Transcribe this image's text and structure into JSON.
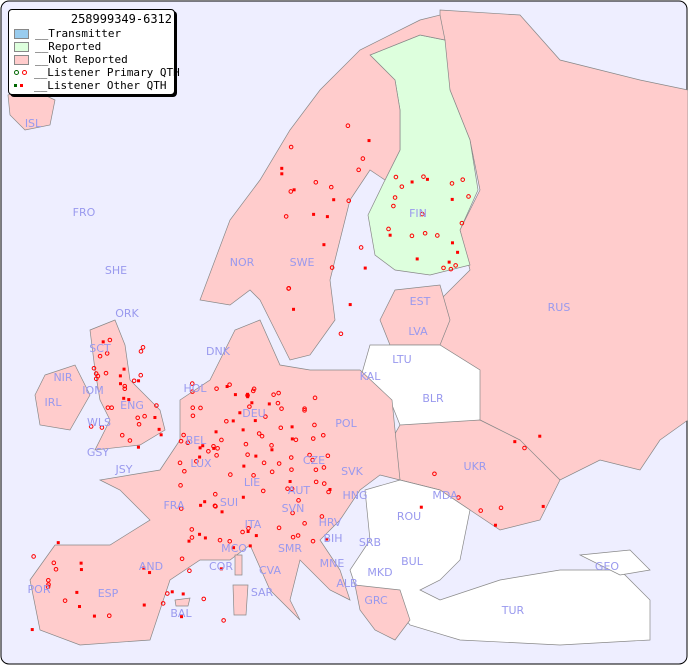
{
  "legend": {
    "title": "258999349-6312",
    "items": [
      {
        "label": "__Transmitter",
        "color": "#99ccee"
      },
      {
        "label": "__Reported",
        "color": "#ddffdd"
      },
      {
        "label": "__Not Reported",
        "color": "#ffcccc"
      },
      {
        "label": "__Listener Primary QTH",
        "colors": [
          "#006600",
          "#ff0000"
        ]
      },
      {
        "label": "__Listener Other QTH",
        "colors": [
          "#006600",
          "#ff0000"
        ]
      }
    ]
  },
  "colors": {
    "sea": "#eeeeff",
    "not_reported": "#ffcccc",
    "reported": "#ddffdd",
    "no_data": "#ffffff",
    "label": "#9999ee",
    "marker": "#ff0000"
  },
  "countries": [
    "ISL",
    "FRO",
    "SHE",
    "ORK",
    "NOR",
    "SWE",
    "FIN",
    "EST",
    "LVA",
    "LTU",
    "KAL",
    "RUS",
    "BLR",
    "DNK",
    "HOL",
    "DEU",
    "POL",
    "UKR",
    "IRL",
    "NIR",
    "SCT",
    "IOM",
    "WLS",
    "ENG",
    "GSY",
    "JSY",
    "BEL",
    "LUX",
    "CZE",
    "SVK",
    "AUT",
    "HNG",
    "MDA",
    "FRA",
    "SUI",
    "LIE",
    "SVN",
    "HRV",
    "ROU",
    "ITA",
    "BIH",
    "SRB",
    "MCO",
    "SMR",
    "COR",
    "BUL",
    "GEO",
    "AND",
    "MNE",
    "ALB",
    "MKD",
    "CVA",
    "POR",
    "ESP",
    "SAR",
    "GRC",
    "BAL",
    "TUR"
  ],
  "reported_countries": [
    "FIN"
  ]
}
